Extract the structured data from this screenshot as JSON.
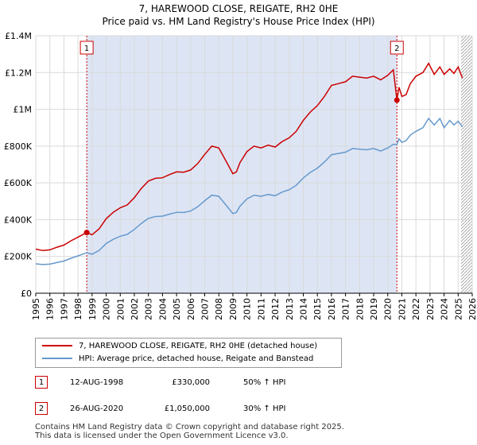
{
  "chart_data": {
    "type": "line",
    "title": "7, HAREWOOD CLOSE, REIGATE, RH2 0HE",
    "subtitle": "Price paid vs. HM Land Registry's House Price Index (HPI)",
    "xlim": [
      1995,
      2026
    ],
    "ylim": [
      0,
      1400000
    ],
    "x_ticks": [
      "1995",
      "1996",
      "1997",
      "1998",
      "1999",
      "2000",
      "2001",
      "2002",
      "2003",
      "2004",
      "2005",
      "2006",
      "2007",
      "2008",
      "2009",
      "2010",
      "2011",
      "2012",
      "2013",
      "2014",
      "2015",
      "2016",
      "2017",
      "2018",
      "2019",
      "2020",
      "2021",
      "2022",
      "2023",
      "2024",
      "2025",
      "2026"
    ],
    "y_ticks": [
      {
        "value": 0,
        "label": "£0"
      },
      {
        "value": 200000,
        "label": "£200K"
      },
      {
        "value": 400000,
        "label": "£400K"
      },
      {
        "value": 600000,
        "label": "£600K"
      },
      {
        "value": 800000,
        "label": "£800K"
      },
      {
        "value": 1000000,
        "label": "£1M"
      },
      {
        "value": 1200000,
        "label": "£1.2M"
      },
      {
        "value": 1400000,
        "label": "£1.4M"
      }
    ],
    "grid": true,
    "shaded_period": {
      "start": 1998.62,
      "end": 2020.65
    },
    "forecast_start": 2025.2,
    "series": [
      {
        "name": "7, HAREWOOD CLOSE, REIGATE, RH2 0HE (detached house)",
        "color": "#cc0000",
        "x": [
          1995,
          1995.5,
          1996,
          1996.5,
          1997,
          1997.5,
          1998,
          1998.62,
          1999,
          1999.5,
          2000,
          2000.5,
          2001,
          2001.5,
          2002,
          2002.5,
          2003,
          2003.5,
          2004,
          2004.5,
          2005,
          2005.5,
          2006,
          2006.5,
          2007,
          2007.5,
          2008,
          2008.5,
          2009,
          2009.25,
          2009.5,
          2010,
          2010.5,
          2011,
          2011.5,
          2012,
          2012.5,
          2013,
          2013.5,
          2014,
          2014.5,
          2015,
          2015.5,
          2016,
          2016.5,
          2017,
          2017.5,
          2018,
          2018.5,
          2019,
          2019.5,
          2020,
          2020.4,
          2020.65,
          2020.8,
          2021,
          2021.3,
          2021.6,
          2022,
          2022.5,
          2022.9,
          2023.3,
          2023.7,
          2024,
          2024.4,
          2024.7,
          2025,
          2025.3
        ],
        "values": [
          240000,
          232000,
          236000,
          250000,
          262000,
          285000,
          305000,
          330000,
          318000,
          350000,
          405000,
          440000,
          465000,
          480000,
          520000,
          570000,
          610000,
          625000,
          628000,
          645000,
          660000,
          658000,
          670000,
          705000,
          755000,
          800000,
          790000,
          720000,
          650000,
          660000,
          710000,
          770000,
          800000,
          790000,
          805000,
          795000,
          825000,
          845000,
          880000,
          940000,
          985000,
          1020000,
          1070000,
          1130000,
          1140000,
          1150000,
          1180000,
          1175000,
          1170000,
          1180000,
          1160000,
          1185000,
          1215000,
          1050000,
          1120000,
          1070000,
          1080000,
          1140000,
          1180000,
          1200000,
          1250000,
          1190000,
          1230000,
          1190000,
          1220000,
          1195000,
          1230000,
          1170000
        ]
      },
      {
        "name": "HPI: Average price, detached house, Reigate and Banstead",
        "color": "#6699cc",
        "x": [
          1995,
          1995.5,
          1996,
          1996.5,
          1997,
          1997.5,
          1998,
          1998.62,
          1999,
          1999.5,
          2000,
          2000.5,
          2001,
          2001.5,
          2002,
          2002.5,
          2003,
          2003.5,
          2004,
          2004.5,
          2005,
          2005.5,
          2006,
          2006.5,
          2007,
          2007.5,
          2008,
          2008.5,
          2009,
          2009.25,
          2009.5,
          2010,
          2010.5,
          2011,
          2011.5,
          2012,
          2012.5,
          2013,
          2013.5,
          2014,
          2014.5,
          2015,
          2015.5,
          2016,
          2016.5,
          2017,
          2017.5,
          2018,
          2018.5,
          2019,
          2019.5,
          2020,
          2020.4,
          2020.65,
          2020.8,
          2021,
          2021.3,
          2021.6,
          2022,
          2022.5,
          2022.9,
          2023.3,
          2023.7,
          2024,
          2024.4,
          2024.7,
          2025,
          2025.3
        ],
        "values": [
          160000,
          156000,
          158000,
          167000,
          175000,
          190000,
          203000,
          220000,
          212000,
          233000,
          270000,
          293000,
          310000,
          320000,
          347000,
          380000,
          407000,
          417000,
          419000,
          430000,
          440000,
          439000,
          447000,
          470000,
          503000,
          533000,
          527000,
          480000,
          433000,
          440000,
          473000,
          513000,
          533000,
          527000,
          537000,
          530000,
          550000,
          563000,
          587000,
          627000,
          657000,
          680000,
          713000,
          753000,
          760000,
          767000,
          787000,
          783000,
          780000,
          787000,
          773000,
          790000,
          810000,
          808000,
          840000,
          820000,
          830000,
          860000,
          880000,
          900000,
          950000,
          915000,
          950000,
          900000,
          940000,
          915000,
          935000,
          905000
        ]
      }
    ],
    "markers": [
      {
        "label": "1",
        "x": 1998.62,
        "y": 330000
      },
      {
        "label": "2",
        "x": 2020.65,
        "y": 1050000
      }
    ]
  },
  "legend": {
    "entries": [
      {
        "label": "7, HAREWOOD CLOSE, REIGATE, RH2 0HE (detached house)",
        "color": "#cc0000"
      },
      {
        "label": "HPI: Average price, detached house, Reigate and Banstead",
        "color": "#6699cc"
      }
    ]
  },
  "annotations": [
    {
      "num": "1",
      "date": "12-AUG-1998",
      "price": "£330,000",
      "hpi": "50% ↑ HPI"
    },
    {
      "num": "2",
      "date": "26-AUG-2020",
      "price": "£1,050,000",
      "hpi": "30% ↑ HPI"
    }
  ],
  "footer": {
    "line1": "Contains HM Land Registry data © Crown copyright and database right 2025.",
    "line2": "This data is licensed under the Open Government Licence v3.0."
  }
}
